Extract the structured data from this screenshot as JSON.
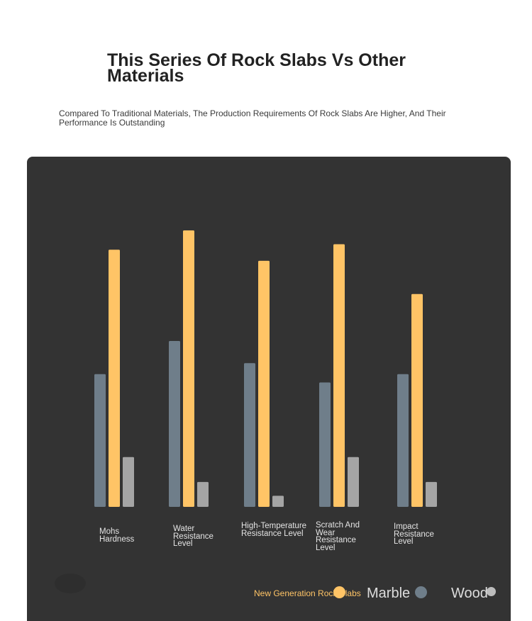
{
  "header": {
    "title": "This Series Of Rock Slabs Vs Other Materials",
    "subtitle": "Compared To Traditional Materials, The Production Requirements Of Rock Slabs Are Higher, And Their Performance Is Outstanding"
  },
  "chart_data": {
    "type": "bar",
    "title": "",
    "xlabel": "",
    "ylabel": "",
    "ylim": [
      0,
      10
    ],
    "grid": false,
    "legend_position": "bottom-right",
    "categories": [
      "Mohs Hardness",
      "Water Resistance Level",
      "High-Temperature Resistance Level",
      "Scratch And Wear Resistance Level",
      "Impact Resistance Level"
    ],
    "series": [
      {
        "name": "Marble",
        "color": "#6f7e8a",
        "values": [
          4.8,
          6.0,
          5.2,
          4.5,
          4.8
        ]
      },
      {
        "name": "New Generation Rock Slabs",
        "color": "#ffc466",
        "values": [
          9.3,
          10.0,
          8.9,
          9.5,
          7.7
        ]
      },
      {
        "name": "Wood",
        "color": "#a5a5a5",
        "values": [
          1.8,
          0.9,
          0.4,
          1.8,
          0.9
        ]
      }
    ]
  },
  "legend": [
    {
      "name": "New Generation Rock Slabs",
      "color": "#ffc466"
    },
    {
      "name": "Marble",
      "color": "#6f7e8a"
    },
    {
      "name": "Wood",
      "color": "#bdbdbd"
    }
  ]
}
